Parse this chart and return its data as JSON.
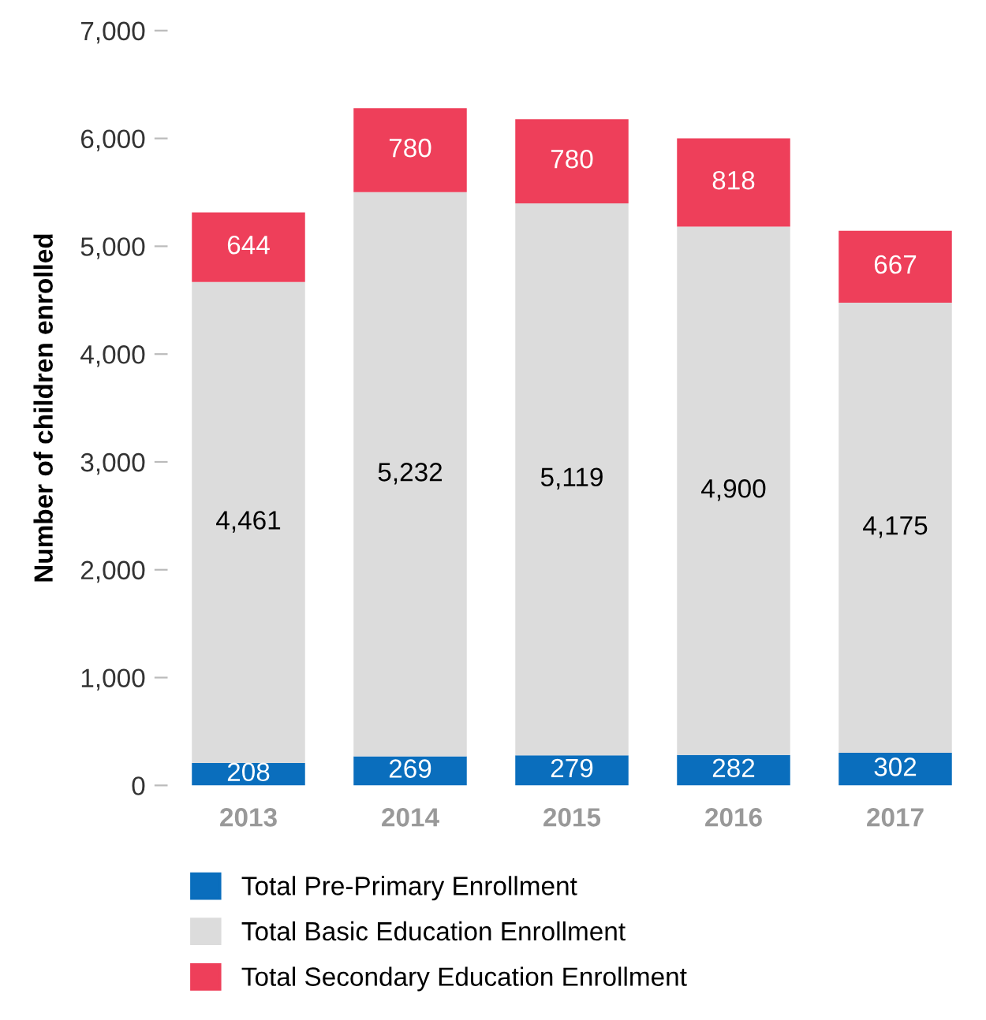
{
  "chart_data": {
    "type": "bar",
    "stacked": true,
    "ylabel": "Number of children enrolled",
    "categories": [
      "2013",
      "2014",
      "2015",
      "2016",
      "2017"
    ],
    "series": [
      {
        "name": "Total Pre-Primary Enrollment",
        "color": "#0a6ebd",
        "values": [
          208,
          269,
          279,
          282,
          302
        ],
        "value_labels": [
          "208",
          "269",
          "279",
          "282",
          "302"
        ]
      },
      {
        "name": "Total Basic Education Enrollment",
        "color": "#dcdcdc",
        "values": [
          4461,
          5232,
          5119,
          4900,
          4175
        ],
        "value_labels": [
          "4,461",
          "5,232",
          "5,119",
          "4,900",
          "4,175"
        ]
      },
      {
        "name": "Total Secondary Education Enrollment",
        "color": "#ee3f5a",
        "values": [
          644,
          780,
          780,
          818,
          667
        ],
        "value_labels": [
          "644",
          "780",
          "780",
          "818",
          "667"
        ]
      }
    ],
    "ylim": [
      0,
      7000
    ],
    "yticks": [
      {
        "value": 0,
        "label": "0"
      },
      {
        "value": 1000,
        "label": "1,000"
      },
      {
        "value": 2000,
        "label": "2,000"
      },
      {
        "value": 3000,
        "label": "3,000"
      },
      {
        "value": 4000,
        "label": "4,000"
      },
      {
        "value": 5000,
        "label": "5,000"
      },
      {
        "value": 6000,
        "label": "6,000"
      },
      {
        "value": 7000,
        "label": "7,000"
      }
    ],
    "grid": false,
    "legend": "bottom"
  }
}
